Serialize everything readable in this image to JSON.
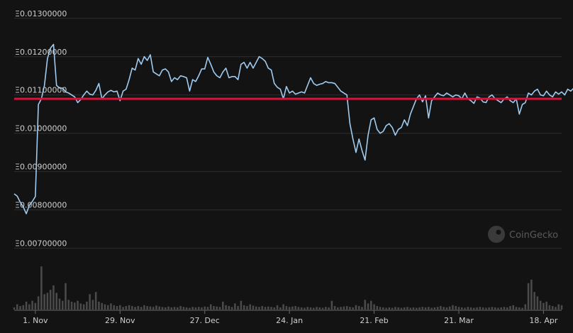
{
  "watermark": "CoinGecko",
  "colors": {
    "background": "#131313",
    "line": "#9fcbf0",
    "reference": "#d1163e",
    "grid": "#2e2e2e",
    "volume": "#4a4a4a"
  },
  "chart_data": {
    "type": "line",
    "title": "",
    "xlabel": "",
    "ylabel": "",
    "grid": true,
    "ylim": [
      0.0069,
      0.0132
    ],
    "yticks": [
      {
        "value": 0.013,
        "label": "Ξ0.01300000"
      },
      {
        "value": 0.012,
        "label": "Ξ0.01200000"
      },
      {
        "value": 0.011,
        "label": "Ξ0.01100000"
      },
      {
        "value": 0.01,
        "label": "Ξ0.01000000"
      },
      {
        "value": 0.009,
        "label": "Ξ0.00900000"
      },
      {
        "value": 0.008,
        "label": "Ξ0.00800000"
      },
      {
        "value": 0.007,
        "label": "Ξ0.00700000"
      }
    ],
    "xticks": [
      {
        "day": 7,
        "label": "1. Nov"
      },
      {
        "day": 35,
        "label": "29. Nov"
      },
      {
        "day": 63,
        "label": "27. Dec"
      },
      {
        "day": 91,
        "label": "24. Jan"
      },
      {
        "day": 119,
        "label": "21. Feb"
      },
      {
        "day": 147,
        "label": "21. Mar"
      },
      {
        "day": 175,
        "label": "18. Apr"
      }
    ],
    "xrange": [
      0,
      181
    ],
    "reference_value": 0.0109,
    "series": [
      {
        "values": [
          0.00842,
          0.00836,
          0.0082,
          0.00808,
          0.0079,
          0.00812,
          0.00822,
          0.00835,
          0.01075,
          0.0109,
          0.01125,
          0.01195,
          0.01222,
          0.01232,
          0.01125,
          0.01118,
          0.01118,
          0.01108,
          0.01105,
          0.011,
          0.01095,
          0.0108,
          0.01088,
          0.011,
          0.0111,
          0.01102,
          0.011,
          0.01112,
          0.0113,
          0.0109,
          0.011,
          0.01108,
          0.01112,
          0.01108,
          0.0111,
          0.01085,
          0.0111,
          0.01115,
          0.0114,
          0.0117,
          0.01165,
          0.01195,
          0.0118,
          0.012,
          0.0119,
          0.01205,
          0.0116,
          0.01155,
          0.0115,
          0.01165,
          0.01168,
          0.0116,
          0.01135,
          0.01145,
          0.0114,
          0.0115,
          0.01148,
          0.01145,
          0.0111,
          0.0114,
          0.01135,
          0.0115,
          0.01168,
          0.01168,
          0.01198,
          0.0118,
          0.0116,
          0.0115,
          0.01145,
          0.0116,
          0.0117,
          0.01145,
          0.01148,
          0.01148,
          0.0114,
          0.0118,
          0.01185,
          0.0117,
          0.01185,
          0.0117,
          0.01185,
          0.012,
          0.01195,
          0.01188,
          0.0117,
          0.01165,
          0.0113,
          0.0112,
          0.01115,
          0.0109,
          0.01122,
          0.01105,
          0.0111,
          0.01102,
          0.01105,
          0.01108,
          0.01105,
          0.01125,
          0.01145,
          0.0113,
          0.01125,
          0.01128,
          0.0113,
          0.01135,
          0.01132,
          0.01132,
          0.0113,
          0.0112,
          0.0111,
          0.01105,
          0.011,
          0.01025,
          0.00985,
          0.0095,
          0.00985,
          0.00955,
          0.0093,
          0.00995,
          0.01035,
          0.0104,
          0.0101,
          0.01,
          0.01005,
          0.0102,
          0.01025,
          0.01015,
          0.00995,
          0.0101,
          0.01015,
          0.01035,
          0.0102,
          0.0105,
          0.0107,
          0.0109,
          0.011,
          0.01082,
          0.01098,
          0.0104,
          0.01085,
          0.01095,
          0.01105,
          0.011,
          0.01098,
          0.01105,
          0.011,
          0.01095,
          0.011,
          0.01098,
          0.0109,
          0.01105,
          0.0109,
          0.01085,
          0.01078,
          0.01095,
          0.01092,
          0.01082,
          0.0108,
          0.01095,
          0.011,
          0.0109,
          0.01085,
          0.0108,
          0.0109,
          0.01095,
          0.01085,
          0.0108,
          0.0109,
          0.0105,
          0.01075,
          0.0108,
          0.01105,
          0.011,
          0.0111,
          0.01115,
          0.011,
          0.01098,
          0.0111,
          0.011,
          0.01095,
          0.01108,
          0.01102,
          0.01108,
          0.011,
          0.01115,
          0.0111,
          0.01118,
          0.01102,
          0.01108,
          0.01112,
          0.011
        ]
      }
    ],
    "volume": [
      0.05,
      0.12,
      0.08,
      0.1,
      0.18,
      0.12,
      0.2,
      0.15,
      0.3,
      0.98,
      0.35,
      0.38,
      0.45,
      0.55,
      0.38,
      0.25,
      0.2,
      0.6,
      0.22,
      0.18,
      0.16,
      0.2,
      0.14,
      0.12,
      0.18,
      0.35,
      0.22,
      0.4,
      0.18,
      0.15,
      0.12,
      0.1,
      0.14,
      0.1,
      0.08,
      0.1,
      0.06,
      0.08,
      0.1,
      0.08,
      0.06,
      0.08,
      0.06,
      0.1,
      0.08,
      0.07,
      0.06,
      0.09,
      0.07,
      0.06,
      0.05,
      0.07,
      0.05,
      0.06,
      0.05,
      0.08,
      0.06,
      0.05,
      0.04,
      0.06,
      0.05,
      0.06,
      0.05,
      0.07,
      0.06,
      0.12,
      0.08,
      0.07,
      0.06,
      0.18,
      0.1,
      0.08,
      0.06,
      0.14,
      0.08,
      0.2,
      0.1,
      0.08,
      0.12,
      0.09,
      0.07,
      0.06,
      0.08,
      0.06,
      0.07,
      0.06,
      0.05,
      0.1,
      0.05,
      0.12,
      0.08,
      0.06,
      0.07,
      0.08,
      0.06,
      0.05,
      0.04,
      0.06,
      0.05,
      0.04,
      0.06,
      0.05,
      0.04,
      0.06,
      0.05,
      0.2,
      0.08,
      0.05,
      0.06,
      0.07,
      0.08,
      0.06,
      0.05,
      0.1,
      0.08,
      0.06,
      0.22,
      0.14,
      0.2,
      0.12,
      0.08,
      0.06,
      0.05,
      0.04,
      0.05,
      0.04,
      0.06,
      0.05,
      0.04,
      0.05,
      0.06,
      0.04,
      0.05,
      0.04,
      0.05,
      0.06,
      0.05,
      0.06,
      0.04,
      0.05,
      0.06,
      0.08,
      0.06,
      0.05,
      0.07,
      0.1,
      0.08,
      0.06,
      0.05,
      0.04,
      0.06,
      0.05,
      0.04,
      0.05,
      0.06,
      0.05,
      0.04,
      0.05,
      0.06,
      0.05,
      0.04,
      0.05,
      0.06,
      0.05,
      0.08,
      0.1,
      0.06,
      0.05,
      0.04,
      0.12,
      0.6,
      0.68,
      0.4,
      0.3,
      0.2,
      0.15,
      0.18,
      0.1,
      0.08,
      0.06,
      0.12,
      0.1
    ]
  }
}
